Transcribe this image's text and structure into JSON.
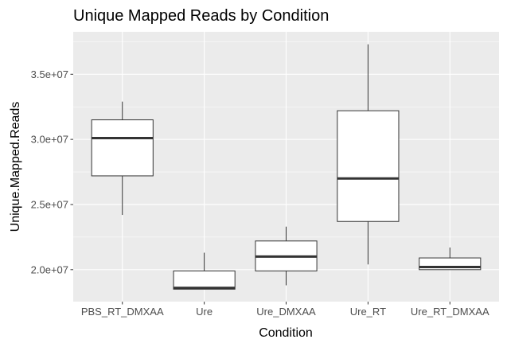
{
  "chart_data": {
    "type": "boxplot",
    "title": "Unique Mapped Reads by Condition",
    "xlabel": "Condition",
    "ylabel": "Unique.Mapped.Reads",
    "ylim": [
      17500000,
      38000000
    ],
    "y_ticks": [
      {
        "value": 20000000,
        "label": "2.0e+07"
      },
      {
        "value": 25000000,
        "label": "2.5e+07"
      },
      {
        "value": 30000000,
        "label": "3.0e+07"
      },
      {
        "value": 35000000,
        "label": "3.5e+07"
      }
    ],
    "grid": true,
    "categories": [
      "PBS_RT_DMXAA",
      "Ure",
      "Ure_DMXAA",
      "Ure_RT",
      "Ure_RT_DMXAA"
    ],
    "boxes": [
      {
        "category": "PBS_RT_DMXAA",
        "min": 24200000,
        "q1": 27200000,
        "median": 30100000,
        "q3": 31500000,
        "max": 32900000
      },
      {
        "category": "Ure",
        "min": 18500000,
        "q1": 18500000,
        "median": 18600000,
        "q3": 19900000,
        "max": 21300000
      },
      {
        "category": "Ure_DMXAA",
        "min": 18800000,
        "q1": 19900000,
        "median": 21000000,
        "q3": 22200000,
        "max": 23300000
      },
      {
        "category": "Ure_RT",
        "min": 20400000,
        "q1": 23700000,
        "median": 27000000,
        "q3": 32200000,
        "max": 37300000
      },
      {
        "category": "Ure_RT_DMXAA",
        "min": 20000000,
        "q1": 20000000,
        "median": 20200000,
        "q3": 20900000,
        "max": 21700000
      }
    ],
    "colors": {
      "panel_background": "#ebebeb",
      "grid": "#ffffff",
      "box_fill": "#ffffff",
      "box_stroke": "#333333",
      "tick_text": "#4d4d4d"
    }
  }
}
